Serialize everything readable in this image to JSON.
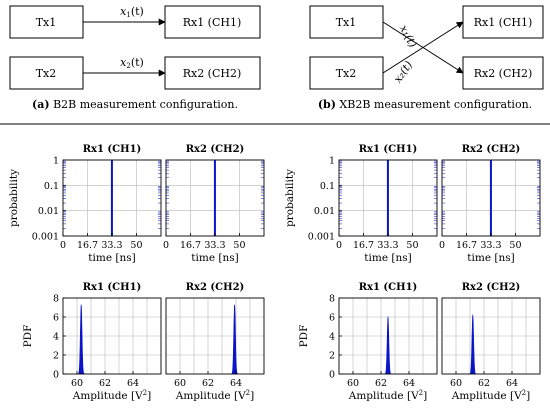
{
  "diagrams": {
    "b2b": {
      "tx1": "Tx1",
      "tx2": "Tx2",
      "rx1": "Rx1 (CH1)",
      "rx2": "Rx2 (CH2)",
      "sig1": "x",
      "sig1_sub": "1",
      "sig1_tail": "(t)",
      "sig2": "x",
      "sig2_sub": "2",
      "sig2_tail": "(t)",
      "caption_label": "(a)",
      "caption_text": " B2B measurement configuration."
    },
    "xb2b": {
      "tx1": "Tx1",
      "tx2": "Tx2",
      "rx1": "Rx1 (CH1)",
      "rx2": "Rx2 (CH2)",
      "sig1": "x₁(t)",
      "sig2": "x₂(t)",
      "caption_label": "(b)",
      "caption_text": " XB2B measurement configuration."
    }
  },
  "chart_data": [
    {
      "type": "bar",
      "panel": "B2B time Rx1",
      "title": "Rx1 (CH1)",
      "xlabel": "time [ns]",
      "ylabel": "probability",
      "yscale": "log",
      "ylim": [
        0.001,
        1
      ],
      "xlim": [
        0,
        66.7
      ],
      "xticks": [
        "0",
        "16.7",
        "33.3",
        "50"
      ],
      "yticks": [
        "1",
        "0.1",
        "0.01",
        "0.001"
      ],
      "x": [
        33.3
      ],
      "values": [
        1
      ]
    },
    {
      "type": "bar",
      "panel": "B2B time Rx2",
      "title": "Rx2 (CH2)",
      "xlabel": "time [ns]",
      "yscale": "log",
      "ylim": [
        0.001,
        1
      ],
      "xlim": [
        0,
        66.7
      ],
      "xticks": [
        "0",
        "16.7",
        "33.3",
        "50"
      ],
      "x": [
        33.3
      ],
      "values": [
        1
      ]
    },
    {
      "type": "bar",
      "panel": "XB2B time Rx1",
      "title": "Rx1 (CH1)",
      "xlabel": "time [ns]",
      "ylabel": "probability",
      "yscale": "log",
      "ylim": [
        0.001,
        1
      ],
      "xlim": [
        0,
        66.7
      ],
      "xticks": [
        "0",
        "16.7",
        "33.3",
        "50"
      ],
      "yticks": [
        "1",
        "0.1",
        "0.01",
        "0.001"
      ],
      "x": [
        33.3
      ],
      "values": [
        1
      ]
    },
    {
      "type": "bar",
      "panel": "XB2B time Rx2",
      "title": "Rx2 (CH2)",
      "xlabel": "time [ns]",
      "yscale": "log",
      "ylim": [
        0.001,
        1
      ],
      "xlim": [
        0,
        66.7
      ],
      "xticks": [
        "0",
        "16.7",
        "33.3",
        "50"
      ],
      "x": [
        33.3
      ],
      "values": [
        1
      ]
    },
    {
      "type": "area",
      "panel": "B2B PDF Rx1",
      "title": "Rx1 (CH1)",
      "xlabel": "Amplitude [V²]",
      "ylabel": "PDF",
      "xlim": [
        59,
        66
      ],
      "ylim": [
        0,
        8
      ],
      "xticks": [
        "60",
        "62",
        "64"
      ],
      "yticks": [
        "0",
        "2",
        "4",
        "6",
        "8"
      ],
      "peak_x": 60.3,
      "peak_y": 7.3
    },
    {
      "type": "area",
      "panel": "B2B PDF Rx2",
      "title": "Rx2 (CH2)",
      "xlabel": "Amplitude [V²]",
      "xlim": [
        59,
        66
      ],
      "ylim": [
        0,
        8
      ],
      "xticks": [
        "60",
        "62",
        "64"
      ],
      "peak_x": 63.9,
      "peak_y": 7.3
    },
    {
      "type": "area",
      "panel": "XB2B PDF Rx1",
      "title": "Rx1 (CH1)",
      "xlabel": "Amplitude [V²]",
      "ylabel": "PDF",
      "xlim": [
        59,
        66
      ],
      "ylim": [
        0,
        8
      ],
      "xticks": [
        "60",
        "62",
        "64"
      ],
      "yticks": [
        "0",
        "2",
        "4",
        "6",
        "8"
      ],
      "peak_x": 62.5,
      "peak_y": 6.0
    },
    {
      "type": "area",
      "panel": "XB2B PDF Rx2",
      "title": "Rx2 (CH2)",
      "xlabel": "Amplitude [V²]",
      "xlim": [
        59,
        66
      ],
      "ylim": [
        0,
        8
      ],
      "xticks": [
        "60",
        "62",
        "64"
      ],
      "peak_x": 61.2,
      "peak_y": 6.2
    }
  ],
  "colors": {
    "series": "#0a14c8",
    "grid": "#b8b8b8"
  }
}
